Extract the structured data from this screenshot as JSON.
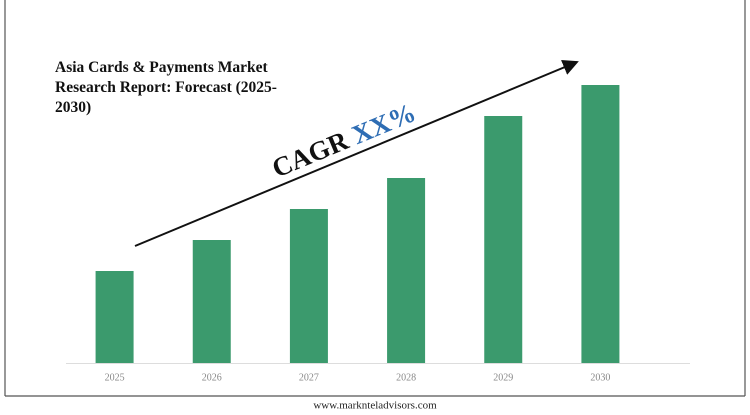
{
  "chart_data": {
    "type": "bar",
    "title": "Asia Cards & Payments Market Research Report: Forecast (2025-2030)",
    "annotation": {
      "label": "CAGR",
      "value": "XX%"
    },
    "categories": [
      "2025",
      "2026",
      "2027",
      "2028",
      "2029",
      "2030"
    ],
    "values": [
      92,
      123,
      154,
      185,
      247,
      278
    ],
    "color": "#3b9a6d",
    "ylim": [
      0,
      300
    ],
    "footer": "www.marknteladvisors.com"
  }
}
